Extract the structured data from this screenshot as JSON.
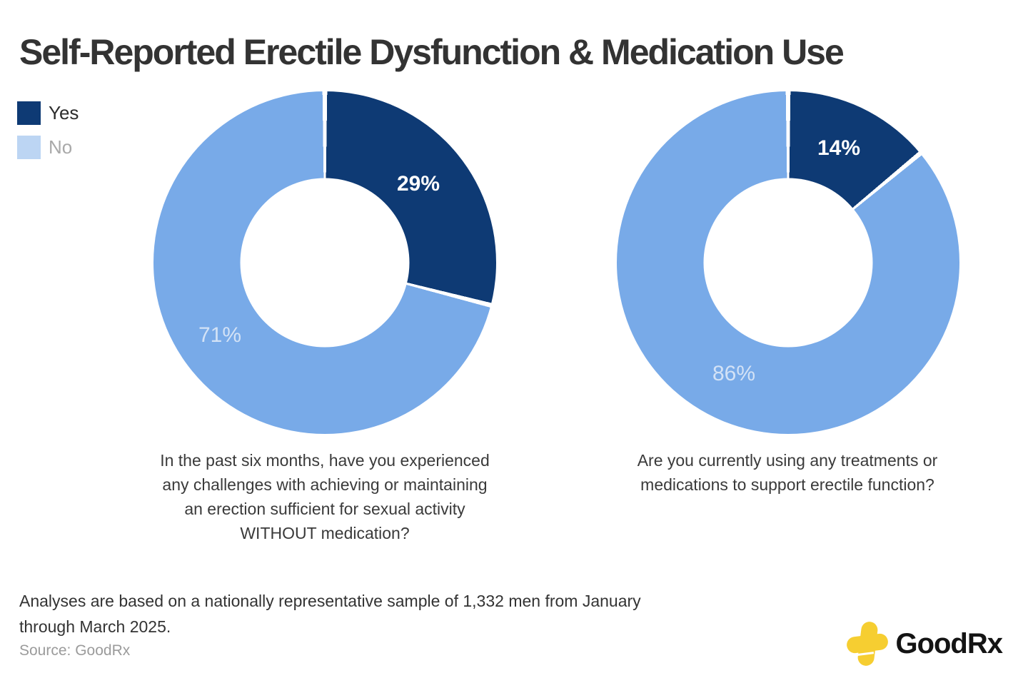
{
  "title": "Self-Reported Erectile Dysfunction & Medication Use",
  "legend": {
    "items": [
      {
        "label": "Yes",
        "color": "#0e3a74",
        "muted": false
      },
      {
        "label": "No",
        "color": "#bcd5f3",
        "muted": true
      }
    ]
  },
  "chart_data": [
    {
      "type": "pie",
      "subtype": "donut",
      "question": "In the past six months, have you experienced any challenges with achieving or maintaining an erection sufficient for sexual activity WITHOUT medication?",
      "question_lines": [
        "In the past six months, have you experienced",
        "any challenges with achieving or maintaining",
        "an erection sufficient for sexual activity",
        "WITHOUT medication?"
      ],
      "categories": [
        "Yes",
        "No"
      ],
      "values": [
        29,
        71
      ],
      "labels": [
        "29%",
        "71%"
      ],
      "colors": [
        "#0e3a74",
        "#78aae8"
      ],
      "start_angle_deg": 0,
      "direction": "clockwise",
      "donut_hole_ratio": 0.49,
      "legend_position": "top-left"
    },
    {
      "type": "pie",
      "subtype": "donut",
      "question": "Are you currently using any treatments or medications to support erectile function?",
      "question_lines": [
        "Are you currently using any treatments or",
        "medications to support erectile function?"
      ],
      "categories": [
        "Yes",
        "No"
      ],
      "values": [
        14,
        86
      ],
      "labels": [
        "14%",
        "86%"
      ],
      "colors": [
        "#0e3a74",
        "#78aae8"
      ],
      "start_angle_deg": 0,
      "direction": "clockwise",
      "donut_hole_ratio": 0.49,
      "legend_position": "top-left"
    }
  ],
  "footer": {
    "note": "Analyses are based on a nationally representative sample of 1,332 men from January through March 2025.",
    "note_lines": [
      "Analyses are based on a nationally representative sample of 1,332 men from January",
      "through March 2025."
    ],
    "source": "Source: GoodRx"
  },
  "logo": {
    "text": "GoodRx",
    "icon": "plus-icon",
    "icon_color": "#f6ce31"
  }
}
